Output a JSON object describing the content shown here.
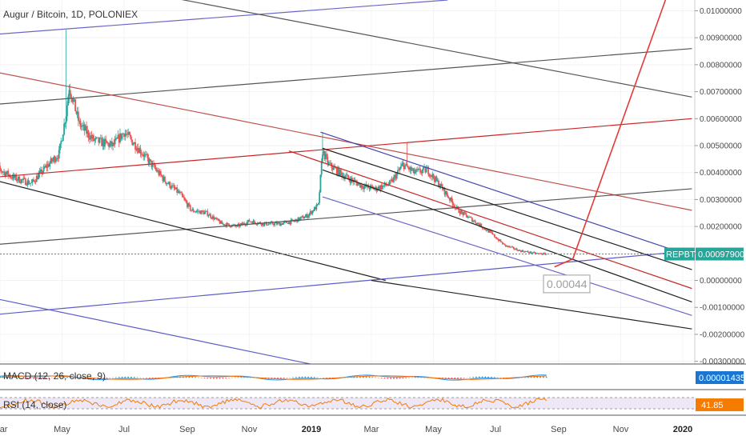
{
  "header": {
    "title": "Augur / Bitcoin, 1D, POLONIEX"
  },
  "chart_data": {
    "type": "candlestick",
    "title": "Augur / Bitcoin, 1D, POLONIEX",
    "symbol": "REPBTC",
    "exchange": "POLONIEX",
    "interval": "1D",
    "y_axis": {
      "position": "right",
      "min": -0.0031,
      "max": 0.0104,
      "ticks": [
        0.01,
        0.009,
        0.008,
        0.007,
        0.006,
        0.005,
        0.004,
        0.003,
        0.002,
        0.001,
        0.0,
        -0.001,
        -0.002,
        -0.003
      ],
      "tick_labels": [
        "0.01000000",
        "0.00900000",
        "0.00800000",
        "0.00700000",
        "0.00600000",
        "0.00500000",
        "0.00400000",
        "0.00300000",
        "0.00200000",
        "0.00100000",
        "0.00000000",
        "-0.00100000",
        "-0.00200000",
        "-0.00300000"
      ]
    },
    "x_axis": {
      "labels": [
        {
          "text": "Mar",
          "date": "2018-03-01"
        },
        {
          "text": "May",
          "date": "2018-05-01"
        },
        {
          "text": "Jul",
          "date": "2018-07-01"
        },
        {
          "text": "Sep",
          "date": "2018-09-01"
        },
        {
          "text": "Nov",
          "date": "2018-11-01"
        },
        {
          "text": "2019",
          "date": "2019-01-01",
          "bold": true
        },
        {
          "text": "Mar",
          "date": "2019-03-01"
        },
        {
          "text": "May",
          "date": "2019-05-01"
        },
        {
          "text": "Jul",
          "date": "2019-07-01"
        },
        {
          "text": "Sep",
          "date": "2019-09-01"
        },
        {
          "text": "Nov",
          "date": "2019-11-01"
        },
        {
          "text": "2020",
          "date": "2020-01-01",
          "bold": true
        }
      ]
    },
    "price_path": [
      {
        "date": "2018-02-20",
        "price": 0.0043
      },
      {
        "date": "2018-03-15",
        "price": 0.0038
      },
      {
        "date": "2018-04-01",
        "price": 0.0036
      },
      {
        "date": "2018-04-15",
        "price": 0.0042
      },
      {
        "date": "2018-04-28",
        "price": 0.0047
      },
      {
        "date": "2018-05-05",
        "price": 0.0062
      },
      {
        "date": "2018-05-08",
        "price": 0.0072
      },
      {
        "date": "2018-05-18",
        "price": 0.0058
      },
      {
        "date": "2018-06-01",
        "price": 0.0052
      },
      {
        "date": "2018-06-20",
        "price": 0.005
      },
      {
        "date": "2018-07-01",
        "price": 0.0055
      },
      {
        "date": "2018-07-15",
        "price": 0.0049
      },
      {
        "date": "2018-07-28",
        "price": 0.0043
      },
      {
        "date": "2018-08-10",
        "price": 0.0037
      },
      {
        "date": "2018-08-25",
        "price": 0.0032
      },
      {
        "date": "2018-09-05",
        "price": 0.0026
      },
      {
        "date": "2018-09-20",
        "price": 0.0025
      },
      {
        "date": "2018-10-05",
        "price": 0.0021
      },
      {
        "date": "2018-10-20",
        "price": 0.002
      },
      {
        "date": "2018-11-01",
        "price": 0.0022
      },
      {
        "date": "2018-11-15",
        "price": 0.0021
      },
      {
        "date": "2018-12-01",
        "price": 0.0021
      },
      {
        "date": "2018-12-15",
        "price": 0.0022
      },
      {
        "date": "2018-12-28",
        "price": 0.0024
      },
      {
        "date": "2019-01-08",
        "price": 0.0028
      },
      {
        "date": "2019-01-12",
        "price": 0.0048
      },
      {
        "date": "2019-01-18",
        "price": 0.0043
      },
      {
        "date": "2019-02-01",
        "price": 0.0039
      },
      {
        "date": "2019-02-20",
        "price": 0.0035
      },
      {
        "date": "2019-03-05",
        "price": 0.0034
      },
      {
        "date": "2019-03-20",
        "price": 0.0036
      },
      {
        "date": "2019-04-01",
        "price": 0.0043
      },
      {
        "date": "2019-04-12",
        "price": 0.004
      },
      {
        "date": "2019-04-25",
        "price": 0.0041
      },
      {
        "date": "2019-05-10",
        "price": 0.0034
      },
      {
        "date": "2019-05-25",
        "price": 0.0026
      },
      {
        "date": "2019-06-10",
        "price": 0.0022
      },
      {
        "date": "2019-06-25",
        "price": 0.0018
      },
      {
        "date": "2019-07-10",
        "price": 0.0013
      },
      {
        "date": "2019-07-25",
        "price": 0.0011
      },
      {
        "date": "2019-08-10",
        "price": 0.001
      },
      {
        "date": "2019-08-20",
        "price": 0.00098
      }
    ],
    "spikes": [
      {
        "date": "2018-05-05",
        "high": 0.0093
      },
      {
        "date": "2019-01-12",
        "high": 0.0055
      },
      {
        "date": "2019-04-05",
        "high": 0.0051
      }
    ],
    "last_price": {
      "label": "REPBTC",
      "value": "0.00097900",
      "price": 0.000979
    },
    "projection_label": {
      "text": "0.00044",
      "date": "2019-09-05",
      "price": -0.0001
    },
    "projection_path": [
      {
        "date": "2019-08-28",
        "price": 0.0005
      },
      {
        "date": "2019-09-15",
        "price": 0.0008
      },
      {
        "date": "2019-12-15",
        "price": 0.0104
      }
    ],
    "trend_lines": [
      {
        "color": "#6a66c6",
        "from": {
          "date": "2018-02-15",
          "price": 0.0091
        },
        "to": {
          "date": "2019-05-15",
          "price": 0.0104
        }
      },
      {
        "color": "#555555",
        "from": {
          "date": "2018-08-01",
          "price": 0.0106
        },
        "to": {
          "date": "2020-01-10",
          "price": 0.0068
        }
      },
      {
        "color": "#555555",
        "from": {
          "date": "2018-02-15",
          "price": 0.0065
        },
        "to": {
          "date": "2020-01-10",
          "price": 0.0086
        }
      },
      {
        "color": "#c0504d",
        "from": {
          "date": "2018-02-15",
          "price": 0.0078
        },
        "to": {
          "date": "2020-01-10",
          "price": 0.0026
        }
      },
      {
        "color": "#c62828",
        "from": {
          "date": "2018-02-15",
          "price": 0.0038
        },
        "to": {
          "date": "2020-01-10",
          "price": 0.006
        }
      },
      {
        "color": "#555555",
        "from": {
          "date": "2018-02-15",
          "price": 0.0013
        },
        "to": {
          "date": "2020-01-10",
          "price": 0.0034
        }
      },
      {
        "color": "#222222",
        "from": {
          "date": "2018-02-15",
          "price": 0.0038
        },
        "to": {
          "date": "2019-03-15",
          "price": 0.0
        }
      },
      {
        "color": "#5c5cc8",
        "from": {
          "date": "2018-02-15",
          "price": -0.0013
        },
        "to": {
          "date": "2020-01-10",
          "price": 0.0011
        }
      },
      {
        "color": "#5c5cc8",
        "from": {
          "date": "2018-02-15",
          "price": -0.0006
        },
        "to": {
          "date": "2018-12-31",
          "price": -0.0031
        }
      },
      {
        "color": "#4444aa",
        "from": {
          "date": "2019-01-10",
          "price": 0.0055
        },
        "to": {
          "date": "2020-01-10",
          "price": 0.0009
        }
      },
      {
        "color": "#222222",
        "from": {
          "date": "2019-01-12",
          "price": 0.0049
        },
        "to": {
          "date": "2020-01-10",
          "price": 0.0004
        }
      },
      {
        "color": "#c62828",
        "from": {
          "date": "2018-12-10",
          "price": 0.0048
        },
        "to": {
          "date": "2020-01-10",
          "price": -0.0003
        }
      },
      {
        "color": "#222222",
        "from": {
          "date": "2019-01-12",
          "price": 0.0041
        },
        "to": {
          "date": "2020-01-10",
          "price": -0.0008
        }
      },
      {
        "color": "#6a66c6",
        "from": {
          "date": "2019-01-12",
          "price": 0.0031
        },
        "to": {
          "date": "2020-01-10",
          "price": -0.0013
        }
      },
      {
        "color": "#222222",
        "from": {
          "date": "2019-03-01",
          "price": 0.0
        },
        "to": {
          "date": "2020-01-10",
          "price": -0.0018
        }
      }
    ],
    "macd": {
      "label": "MACD (12, 26, close, 9)",
      "value": "0.00001435"
    },
    "rsi": {
      "label": "RSI (14, close)",
      "value": "41.85"
    },
    "colors": {
      "up": "#26a69a",
      "down": "#ef5350",
      "last_price": "#26a69a",
      "macd": "#2196f3",
      "signal": "#ff6d00",
      "rsi": "#f57c00",
      "rsi_band": "#ede7f6"
    }
  }
}
